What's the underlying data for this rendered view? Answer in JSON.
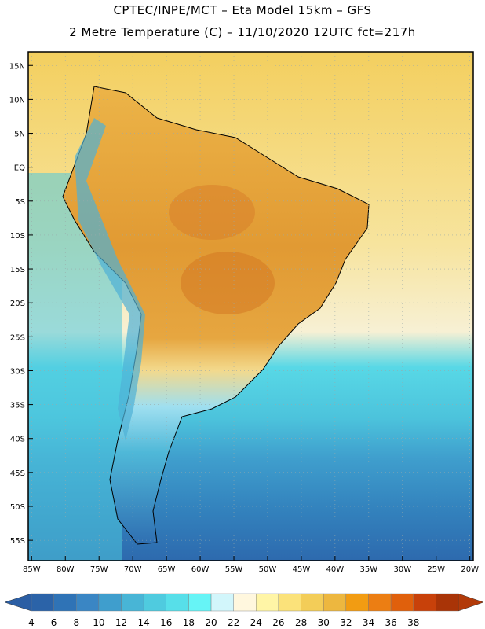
{
  "header": {
    "title_line1": "CPTEC/INPE/MCT –  Eta Model 15km – GFS",
    "title_line2": "2 Metre Temperature (C) – 11/10/2020 12UTC fct=217h"
  },
  "map": {
    "lat_labels": [
      "15N",
      "10N",
      "5N",
      "EQ",
      "5S",
      "10S",
      "15S",
      "20S",
      "25S",
      "30S",
      "35S",
      "40S",
      "45S",
      "50S",
      "55S"
    ],
    "lat_values": [
      15,
      10,
      5,
      0,
      -5,
      -10,
      -15,
      -20,
      -25,
      -30,
      -35,
      -40,
      -45,
      -50,
      -55
    ],
    "lon_labels": [
      "85W",
      "80W",
      "75W",
      "70W",
      "65W",
      "60W",
      "55W",
      "50W",
      "45W",
      "40W",
      "35W",
      "30W",
      "25W",
      "20W"
    ],
    "lon_values": [
      -85,
      -80,
      -75,
      -70,
      -65,
      -60,
      -55,
      -50,
      -45,
      -40,
      -35,
      -30,
      -25,
      -20
    ],
    "lat_range": [
      -58,
      17
    ],
    "lon_range": [
      -85.5,
      -19.5
    ],
    "grid": true
  },
  "legend": {
    "ticks": [
      "4",
      "6",
      "8",
      "10",
      "12",
      "14",
      "16",
      "18",
      "20",
      "22",
      "24",
      "26",
      "28",
      "30",
      "32",
      "34",
      "36",
      "38"
    ],
    "colors": [
      "#2b63a8",
      "#2f73b6",
      "#3a86c4",
      "#3f9ecd",
      "#48b5d6",
      "#4fcbdf",
      "#57dfe9",
      "#66f4f6",
      "#d2f6fb",
      "#fff7de",
      "#fff5a6",
      "#fbe27a",
      "#f3cd58",
      "#edb73f",
      "#f29c12",
      "#ec7e13",
      "#e0600c",
      "#c8410a",
      "#a93407"
    ],
    "low_color": "#2b5ea4",
    "high_color": "#b23a09"
  },
  "colors": {
    "ocean_warm": "#f3d065",
    "ocean_mild": "#f7e6a2",
    "ocean_cool": "#50d2e4",
    "ocean_cold": "#3f9ecd",
    "ocean_deep": "#2f73b6",
    "land_hot": "#e8a23a",
    "land_very_hot": "#d9822b",
    "coastline": "#000000"
  }
}
